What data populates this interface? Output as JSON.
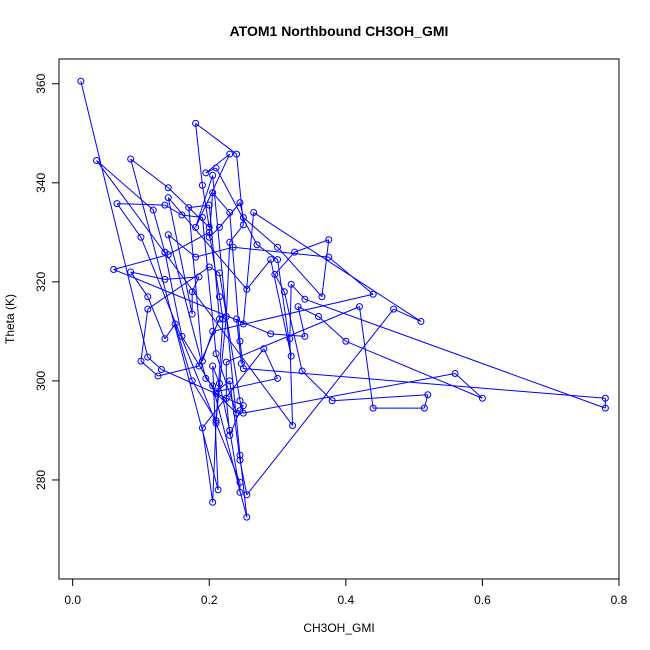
{
  "chart_data": {
    "type": "line",
    "title": "ATOM1 Northbound CH3OH_GMI",
    "xlabel": "CH3OH_GMI",
    "ylabel": "Theta (K)",
    "xlim": [
      -0.02,
      0.8
    ],
    "ylim": [
      260,
      365
    ],
    "xticks": [
      "0.0",
      "0.2",
      "0.4",
      "0.6",
      "0.8"
    ],
    "yticks": [
      "280",
      "300",
      "320",
      "340",
      "360"
    ],
    "grid": false,
    "legend": "none",
    "series": [
      {
        "color": "#0000ff",
        "marker": "open-circle",
        "x": [
          0.012,
          0.11,
          0.13,
          0.25,
          0.245,
          0.23,
          0.225,
          0.225,
          0.42,
          0.44,
          0.515,
          0.52,
          0.38,
          0.336,
          0.31,
          0.296,
          0.325,
          0.375,
          0.365,
          0.3,
          0.25,
          0.245,
          0.215,
          0.2,
          0.205,
          0.23,
          0.245,
          0.25,
          0.78,
          0.78,
          0.34,
          0.32,
          0.318,
          0.322,
          0.035,
          0.118,
          0.135,
          0.16,
          0.21,
          0.24,
          0.21,
          0.19,
          0.16,
          0.135,
          0.065,
          0.1,
          0.245,
          0.245,
          0.23,
          0.215,
          0.205,
          0.213,
          0.085,
          0.14,
          0.2,
          0.19,
          0.18,
          0.24,
          0.25,
          0.23,
          0.225,
          0.21,
          0.175,
          0.15,
          0.135,
          0.11,
          0.085,
          0.135,
          0.185,
          0.175,
          0.175,
          0.14,
          0.255,
          0.29,
          0.32,
          0.3,
          0.27,
          0.21,
          0.195,
          0.23,
          0.18,
          0.205,
          0.245,
          0.255,
          0.205,
          0.195,
          0.14,
          0.18,
          0.235,
          0.375,
          0.44,
          0.205,
          0.19,
          0.17,
          0.2,
          0.215,
          0.185,
          0.125,
          0.1,
          0.11,
          0.2,
          0.215,
          0.245,
          0.25,
          0.56,
          0.6,
          0.4,
          0.36,
          0.33,
          0.34,
          0.29,
          0.06,
          0.14,
          0.2,
          0.215,
          0.22,
          0.21,
          0.205,
          0.19,
          0.28,
          0.3,
          0.21,
          0.23,
          0.245,
          0.255,
          0.47,
          0.51,
          0.265,
          0.25,
          0.24,
          0.247
        ],
        "y": [
          360.5,
          304.8,
          302.3,
          295.0,
          294.0,
          289.0,
          296.5,
          303.8,
          315.0,
          294.5,
          294.5,
          297.2,
          296.0,
          302.0,
          318.0,
          321.5,
          326.0,
          328.5,
          317.0,
          327.0,
          333.0,
          336.0,
          331.0,
          329.0,
          338.0,
          334.0,
          308.0,
          302.5,
          296.5,
          294.5,
          316.5,
          319.5,
          308.5,
          291.0,
          344.5,
          334.5,
          326.0,
          309.0,
          297.5,
          293.5,
          305.5,
          333.0,
          333.5,
          335.5,
          335.8,
          329.0,
          279.5,
          277.5,
          290.0,
          299.5,
          303.0,
          278.0,
          344.8,
          339.0,
          331.0,
          339.5,
          352.0,
          345.8,
          331.5,
          328.0,
          313.0,
          292.0,
          300.0,
          311.5,
          308.5,
          317.0,
          322.0,
          320.5,
          321.0,
          318.0,
          313.5,
          337.0,
          318.5,
          324.5,
          305.0,
          324.5,
          327.5,
          343.0,
          342.0,
          345.8,
          331.0,
          341.5,
          285.0,
          272.5,
          299.0,
          300.5,
          329.5,
          325.0,
          327.0,
          325.0,
          317.5,
          310.0,
          304.0,
          335.0,
          335.5,
          312.5,
          303.0,
          301.0,
          304.0,
          314.5,
          323.0,
          321.8,
          296.0,
          293.5,
          301.5,
          296.5,
          308.0,
          313.0,
          315.0,
          309.0,
          309.5,
          322.5,
          325.5,
          330.0,
          317.0,
          312.5,
          291.5,
          275.5,
          290.5,
          306.5,
          300.5,
          297.8,
          300.0,
          284.0,
          277.0,
          314.5,
          312.0,
          334.0,
          311.5,
          312.5,
          303.5
        ]
      }
    ]
  }
}
